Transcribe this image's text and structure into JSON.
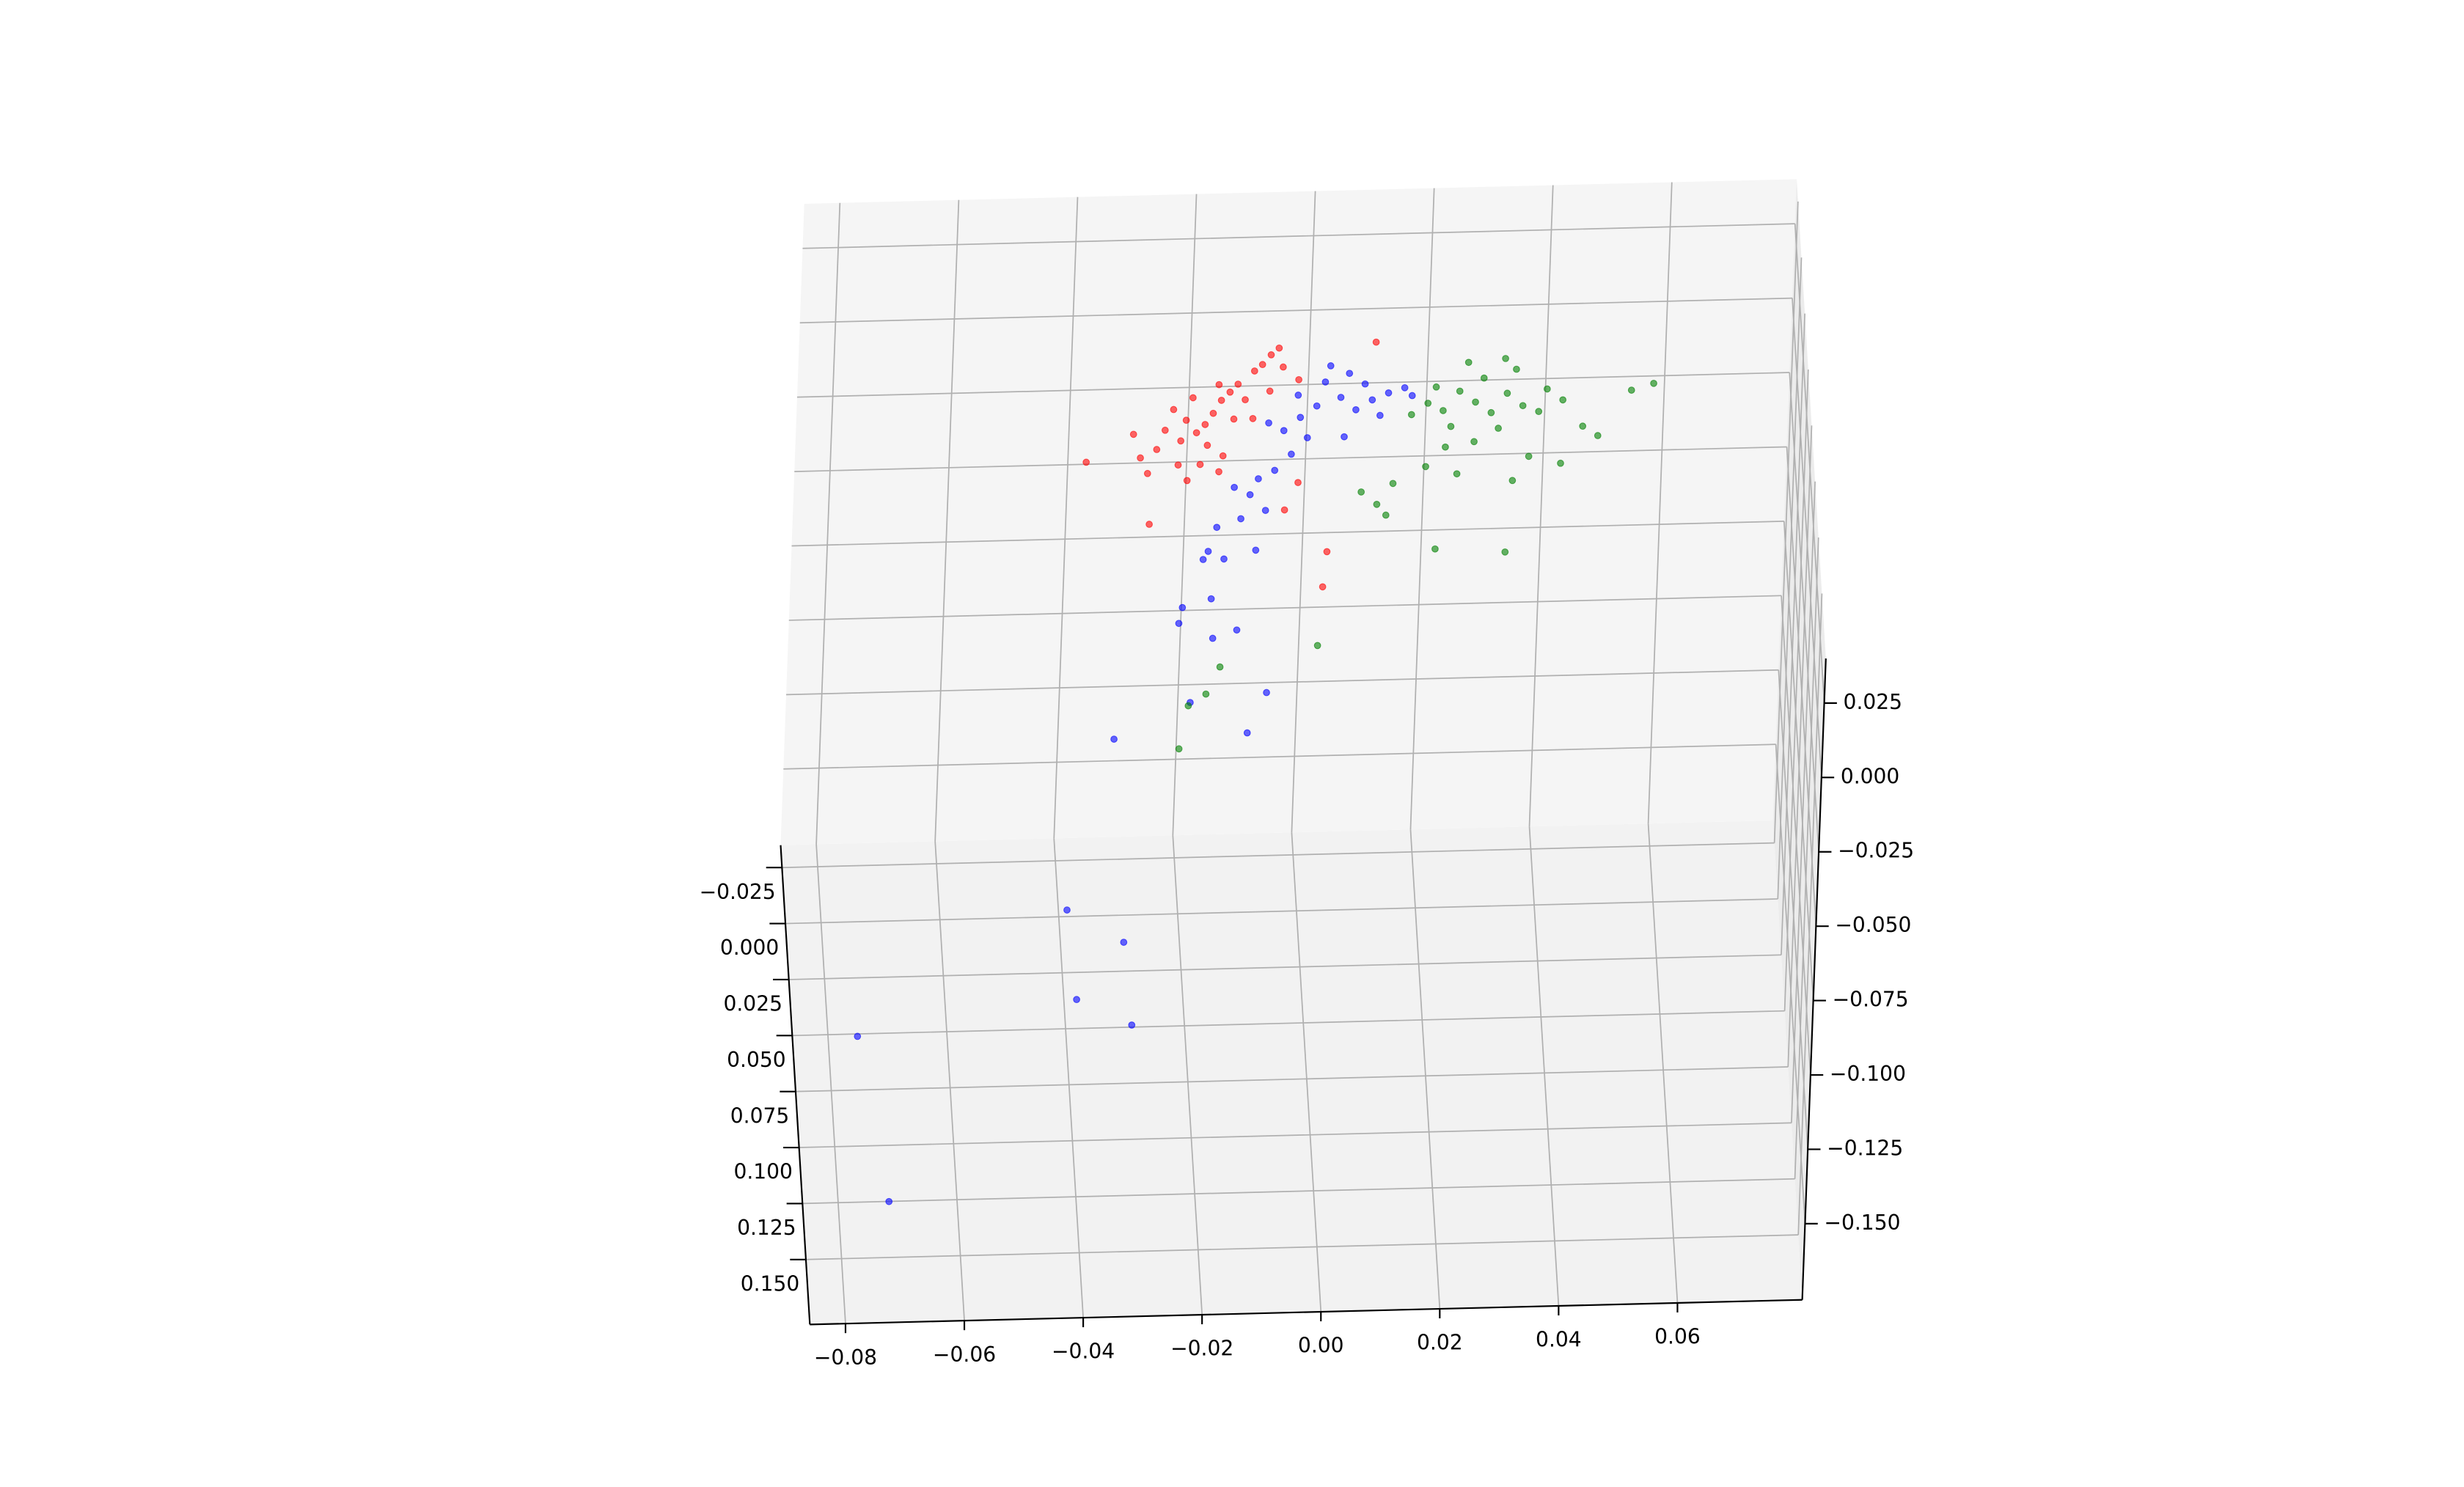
{
  "chart_data": {
    "type": "scatter3d",
    "grid": true,
    "xlim": [
      -0.086,
      0.081
    ],
    "ylim": [
      -0.035,
      0.179
    ],
    "zlim": [
      -0.1756,
      0.04
    ],
    "xticks": [
      {
        "value": -0.08,
        "label": "−0.08"
      },
      {
        "value": -0.06,
        "label": "−0.06"
      },
      {
        "value": -0.04,
        "label": "−0.04"
      },
      {
        "value": -0.02,
        "label": "−0.02"
      },
      {
        "value": 0,
        "label": "0.00"
      },
      0.02,
      0.04,
      0.06
    ],
    "yticks": [
      {
        "value": -0.025,
        "label": "−0.025"
      },
      {
        "value": 0,
        "label": "0.000"
      },
      0.025,
      {
        "value": 0.05,
        "label": "0.050"
      },
      0.075,
      {
        "value": 0.1,
        "label": "0.100"
      },
      0.125,
      {
        "value": 0.15,
        "label": "0.150"
      }
    ],
    "zticks": [
      0.025,
      {
        "value": 0,
        "label": "0.000"
      },
      {
        "value": -0.025,
        "label": "−0.025"
      },
      {
        "value": -0.05,
        "label": "−0.050"
      },
      {
        "value": -0.075,
        "label": "−0.075"
      },
      {
        "value": -0.1,
        "label": "−0.100"
      },
      {
        "value": -0.125,
        "label": "−0.125"
      },
      {
        "value": -0.15,
        "label": "−0.150"
      }
    ],
    "series": [
      {
        "color": "red",
        "x": [
          -0.0171,
          -0.0158,
          -0.0184,
          -0.0144,
          -0.0131,
          -0.0104,
          -0.0091,
          -0.0077,
          -0.0198,
          -0.0216,
          -0.0224,
          -0.0251,
          -0.0238,
          -0.0206,
          -0.0163,
          -0.0118,
          -0.0136,
          -0.0179,
          -0.0152,
          -0.0264,
          -0.0291,
          -0.0304,
          -0.0278,
          -0.0382,
          -0.0272,
          -0.0064,
          -0.0056,
          -0.0104,
          -0.019,
          -0.0227,
          -0.0045,
          -0.0024,
          0.0029,
          0.0024,
          0.0099,
          -0.0029,
          -0.0158,
          -0.0211,
          -0.0077
        ],
        "y": [
          0,
          0,
          0,
          0,
          0,
          0,
          0,
          0,
          0,
          0,
          0,
          0,
          0,
          0,
          0,
          0,
          0,
          0,
          0,
          0,
          0,
          0,
          0,
          0,
          0,
          0,
          0,
          0,
          0,
          0,
          0,
          0,
          0,
          0,
          0,
          0,
          0,
          0,
          0
        ],
        "z": [
          -0.0075,
          -0.0032,
          -0.0112,
          -0.0005,
          0.0021,
          0.0064,
          0.0085,
          0.0117,
          -0.0139,
          -0.0096,
          -0.0165,
          -0.0128,
          -0.0059,
          -0.0021,
          0.0021,
          -0.0032,
          -0.0096,
          -0.0182,
          -0.0219,
          -0.0192,
          -0.0219,
          -0.0139,
          -0.0272,
          -0.0229,
          -0.0443,
          0.0139,
          0.0075,
          -0.0096,
          -0.0246,
          -0.0246,
          -0.0406,
          -0.0315,
          -0.055,
          -0.0668,
          0.0151,
          0.0031,
          -0.0272,
          -0.0299,
          -0.0005
        ]
      },
      {
        "color": "blue",
        "x": [
          0.0003,
          0.0043,
          0.0069,
          0.0096,
          0.0123,
          0.015,
          -0.0024,
          -0.0051,
          -0.0077,
          0.0016,
          0.0056,
          0.0083,
          -0.0011,
          -0.0037,
          -0.0064,
          -0.0091,
          -0.0104,
          -0.0131,
          -0.0077,
          -0.0118,
          -0.0158,
          -0.0171,
          -0.0144,
          -0.0179,
          -0.0091,
          -0.0163,
          -0.0211,
          -0.0216,
          -0.0158,
          -0.0118,
          -0.0064,
          -0.0192,
          -0.0094,
          -0.0318,
          0.011,
          0.0051,
          0.0163,
          0.0024,
          -0.0029,
          -0.0398,
          -0.0306,
          -0.0391,
          -0.0301,
          -0.0763,
          -0.0727
        ],
        "y": [
          0,
          0,
          0,
          0,
          0,
          0,
          0,
          0,
          0,
          0,
          0,
          0,
          0,
          0,
          0,
          0,
          0,
          0,
          0,
          0,
          0,
          0,
          0,
          0,
          0,
          0,
          0,
          0,
          0,
          0,
          0,
          0,
          0,
          0,
          0,
          0,
          0,
          0,
          0,
          0.031,
          0.046,
          0.071,
          0.083,
          0.085,
          0.159
        ],
        "z": [
          -0.0059,
          -0.0032,
          -0.0075,
          -0.0043,
          -0.0021,
          -0.0005,
          -0.0096,
          -0.0139,
          -0.0112,
          0.0021,
          0.0048,
          0.0011,
          -0.0165,
          -0.0219,
          -0.0272,
          -0.0299,
          -0.0352,
          -0.0326,
          -0.0406,
          -0.0432,
          -0.0459,
          -0.0539,
          -0.0566,
          -0.0566,
          -0.0539,
          -0.0699,
          -0.0726,
          -0.0779,
          -0.0832,
          -0.0806,
          -0.1019,
          -0.1046,
          -0.1153,
          -0.1163,
          -0.0096,
          -0.0165,
          -0.0032,
          0.0075,
          -0.0021,
          -0.15,
          -0.15,
          -0.15,
          -0.15,
          -0.15,
          -0.15
        ]
      },
      {
        "color": "green",
        "x": [
          0.027,
          0.0243,
          0.0297,
          0.0216,
          0.0323,
          0.0283,
          0.0256,
          0.035,
          0.023,
          0.031,
          0.0203,
          0.0337,
          0.0377,
          0.019,
          0.039,
          0.0163,
          0.027,
          0.0222,
          0.0318,
          0.0417,
          0.0569,
          0.0532,
          0.0478,
          0.0452,
          0.0417,
          0.0363,
          0.0337,
          0.0243,
          0.019,
          0.0136,
          0.011,
          0.0083,
          0.0211,
          0.0329,
          0.0126,
          0.0019,
          -0.0144,
          -0.0166,
          -0.0195,
          -0.0208
        ],
        "y": [
          0,
          0,
          0,
          0,
          0,
          0,
          0,
          0,
          0,
          0,
          0,
          0,
          0,
          0,
          0,
          0,
          0,
          0,
          0,
          0,
          0,
          0,
          0,
          0,
          0,
          0,
          0,
          0,
          0,
          0,
          0,
          0,
          0,
          0,
          0,
          0,
          0,
          0,
          0,
          0
        ],
        "z": [
          -0.0059,
          -0.0021,
          -0.0096,
          -0.0085,
          -0.0032,
          0.0021,
          0.0075,
          -0.0075,
          -0.0139,
          -0.0149,
          -0.0005,
          0.0048,
          -0.0096,
          -0.0059,
          -0.0021,
          -0.0096,
          -0.0192,
          -0.0208,
          0.0085,
          -0.0059,
          -0.0011,
          -0.0032,
          -0.0182,
          -0.0149,
          -0.0272,
          -0.0246,
          -0.0326,
          -0.0299,
          -0.0272,
          -0.0326,
          -0.0395,
          -0.0352,
          -0.055,
          -0.0566,
          -0.0432,
          -0.0865,
          -0.0929,
          -0.1019,
          -0.1057,
          -0.1201
        ]
      }
    ]
  }
}
